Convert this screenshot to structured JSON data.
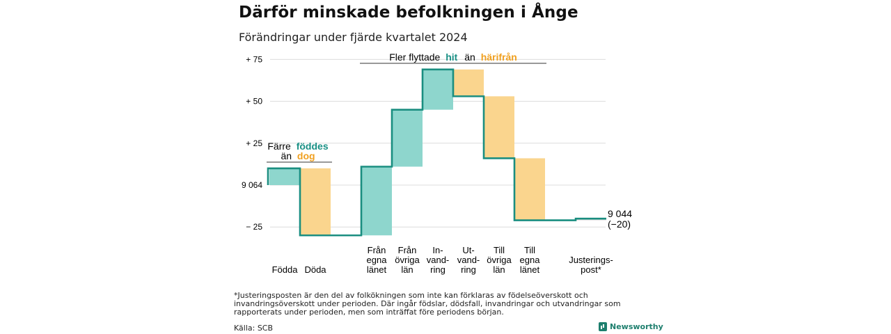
{
  "header": {
    "title": "Därför minskade befolkningen i Ånge",
    "subtitle": "Förändringar under fjärde kvartalet 2024"
  },
  "colors": {
    "teal": "#8ed6cd",
    "orange": "#fad58e",
    "line": "#1a8e80",
    "tealText": "#1a9085",
    "orangeText": "#f0a020"
  },
  "annotations": {
    "births": {
      "line1": "Färre",
      "highlight1": "föddes",
      "line2": "än",
      "highlight2": "dog"
    },
    "migration": {
      "prefix": "Fler flyttade",
      "highlight1": "hit",
      "mid": "än",
      "highlight2": "härifrån"
    }
  },
  "end_label": {
    "value": "9 044",
    "change": "(−20)"
  },
  "footnote": "*Justeringsposten är den del av folkökningen som inte kan förklaras av födelseöverskott och invandringsöverskott under perioden. Där ingår födslar, dödsfall, invandringar och utvandringar som rapporterats under perioden, men som inträffat före periodens början.",
  "source": "Källa: SCB",
  "brand": "Newsworthy",
  "chart_data": {
    "type": "waterfall",
    "start_value": 9064,
    "end_value": 9044,
    "y_ticks": [
      {
        "value": 75,
        "label": "+ 75"
      },
      {
        "value": 50,
        "label": "+ 50"
      },
      {
        "value": 25,
        "label": "+ 25"
      },
      {
        "value": 0,
        "label": "9 064"
      },
      {
        "value": -25,
        "label": "− 25"
      }
    ],
    "ylim": [
      -30,
      80
    ],
    "categories": [
      {
        "label": [
          "Födda"
        ],
        "delta": 10,
        "kind": "in"
      },
      {
        "label": [
          "Döda"
        ],
        "delta": -40,
        "kind": "out"
      },
      {
        "label": [
          "Från",
          "egna",
          "länet"
        ],
        "delta": 41,
        "kind": "in"
      },
      {
        "label": [
          "Från",
          "övriga",
          "län"
        ],
        "delta": 34,
        "kind": "in"
      },
      {
        "label": [
          "In-",
          "vand-",
          "ring"
        ],
        "delta": 24,
        "kind": "in"
      },
      {
        "label": [
          "Ut-",
          "vand-",
          "ring"
        ],
        "delta": -16,
        "kind": "out"
      },
      {
        "label": [
          "Till",
          "övriga",
          "län"
        ],
        "delta": -37,
        "kind": "out"
      },
      {
        "label": [
          "Till",
          "egna",
          "länet"
        ],
        "delta": -37,
        "kind": "out"
      },
      {
        "label": [
          "Justerings-",
          "post*"
        ],
        "delta": 1,
        "kind": "adj"
      }
    ]
  }
}
